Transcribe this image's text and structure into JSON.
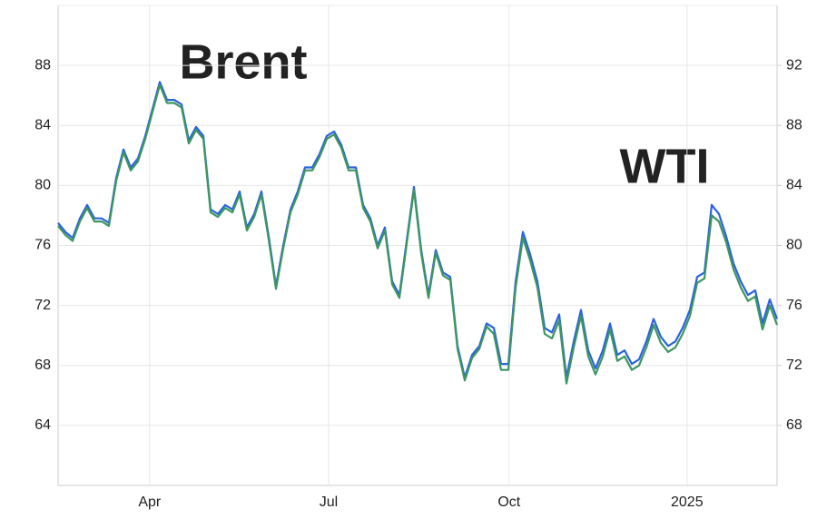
{
  "chart_data": {
    "type": "line",
    "xlim": [
      0,
      99
    ],
    "xticks": [
      {
        "value": 12.6,
        "label": "Apr"
      },
      {
        "value": 37.25,
        "label": "Jul"
      },
      {
        "value": 62.1,
        "label": "Oct"
      },
      {
        "value": 86.6,
        "label": "2025"
      }
    ],
    "ylim": [
      60,
      92
    ],
    "yticks": [
      64,
      68,
      72,
      76,
      80,
      84,
      88
    ],
    "y2lim": [
      64,
      96
    ],
    "y2ticks": [
      68,
      72,
      76,
      80,
      84,
      88,
      92
    ],
    "grid": true,
    "series": [
      {
        "name": "WTI",
        "color": "#2a62e0",
        "values": [
          77.5,
          76.9,
          76.5,
          77.8,
          78.7,
          77.8,
          77.8,
          77.5,
          80.5,
          82.4,
          81.2,
          81.8,
          83.3,
          85.1,
          86.9,
          85.7,
          85.7,
          85.4,
          83.0,
          83.9,
          83.3,
          78.4,
          78.1,
          78.7,
          78.4,
          79.6,
          77.2,
          78.1,
          79.6,
          76.6,
          73.3,
          76.0,
          78.4,
          79.6,
          81.2,
          81.2,
          82.1,
          83.3,
          83.6,
          82.7,
          81.2,
          81.2,
          78.7,
          77.8,
          76.0,
          77.2,
          73.6,
          72.7,
          76.3,
          79.9,
          75.7,
          72.7,
          75.7,
          74.2,
          73.9,
          69.3,
          67.2,
          68.7,
          69.3,
          70.8,
          70.5,
          68.1,
          68.1,
          73.6,
          76.9,
          75.4,
          73.6,
          70.5,
          70.2,
          71.4,
          67.2,
          69.6,
          71.7,
          69.0,
          67.8,
          69.0,
          70.8,
          68.7,
          69.0,
          68.1,
          68.4,
          69.6,
          71.1,
          69.9,
          69.3,
          69.6,
          70.5,
          71.7,
          73.9,
          74.2,
          78.7,
          78.1,
          76.6,
          74.8,
          73.6,
          72.7,
          73.0,
          70.8,
          72.4,
          71.1
        ]
      },
      {
        "name": "Brent",
        "color": "#3d9660",
        "axis": "y2",
        "values": [
          81.3,
          80.7,
          80.3,
          81.6,
          82.5,
          81.6,
          81.6,
          81.3,
          84.3,
          86.2,
          85.0,
          85.6,
          87.1,
          88.9,
          90.7,
          89.5,
          89.5,
          89.2,
          86.8,
          87.7,
          87.1,
          82.2,
          81.9,
          82.5,
          82.2,
          83.4,
          81.0,
          81.9,
          83.4,
          80.4,
          77.1,
          79.8,
          82.2,
          83.4,
          85.0,
          85.0,
          85.9,
          87.1,
          87.4,
          86.5,
          85.0,
          85.0,
          82.5,
          81.6,
          79.8,
          81.0,
          77.4,
          76.5,
          80.1,
          83.7,
          79.5,
          76.5,
          79.5,
          78.0,
          77.7,
          73.1,
          71.0,
          72.5,
          73.1,
          74.6,
          74.1,
          71.7,
          71.7,
          77.2,
          80.5,
          79.0,
          77.2,
          74.1,
          73.8,
          75.0,
          70.8,
          73.2,
          75.3,
          72.6,
          71.4,
          72.6,
          74.4,
          72.3,
          72.6,
          71.7,
          72.0,
          73.2,
          74.7,
          73.5,
          72.9,
          73.2,
          74.1,
          75.3,
          77.5,
          77.8,
          82.0,
          81.6,
          80.2,
          78.4,
          77.2,
          76.3,
          76.6,
          74.4,
          76.0,
          74.7
        ]
      }
    ]
  }
}
